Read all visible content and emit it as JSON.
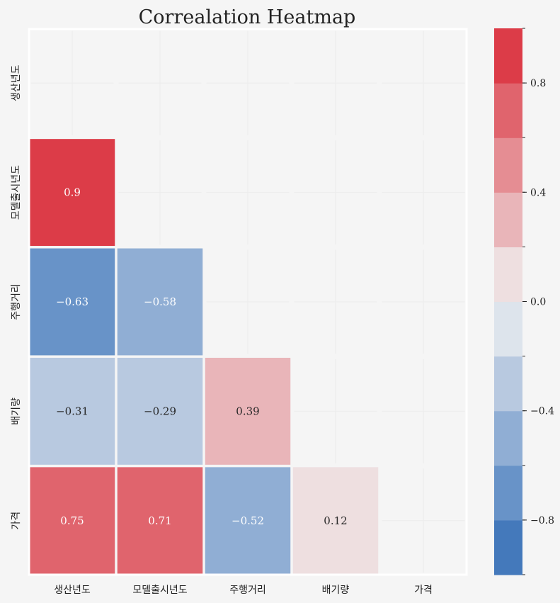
{
  "chart_data": {
    "type": "heatmap",
    "title": "Correalation Heatmap",
    "xlabel": "",
    "ylabel": "",
    "row_labels": [
      "생산년도",
      "모델출시년도",
      "주행거리",
      "배기량",
      "가격"
    ],
    "col_labels": [
      "생산년도",
      "모델출시년도",
      "주행거리",
      "배기량",
      "가격"
    ],
    "mask": "upper-triangle-including-diagonal",
    "values": [
      [
        null,
        null,
        null,
        null,
        null
      ],
      [
        0.9,
        null,
        null,
        null,
        null
      ],
      [
        -0.63,
        -0.58,
        null,
        null,
        null
      ],
      [
        -0.31,
        -0.29,
        0.39,
        null,
        null
      ],
      [
        0.75,
        0.71,
        -0.52,
        0.12,
        null
      ]
    ],
    "cell_labels": [
      [
        null,
        null,
        null,
        null,
        null
      ],
      [
        "0.9",
        null,
        null,
        null,
        null
      ],
      [
        "−0.63",
        "−0.58",
        null,
        null,
        null
      ],
      [
        "−0.31",
        "−0.29",
        "0.39",
        null,
        null
      ],
      [
        "0.75",
        "0.71",
        "−0.52",
        "0.12",
        null
      ]
    ],
    "colorbar": {
      "range": [
        -1,
        1
      ],
      "bins": 10,
      "ticks": [
        0.8,
        0.4,
        0.0,
        -0.4,
        -0.8
      ],
      "tick_labels": [
        "0.8",
        "0.4",
        "0.0",
        "−0.4",
        "−0.8"
      ],
      "colors_low_to_high": [
        "#4479bb",
        "#6893c8",
        "#90aed4",
        "#b8c9e0",
        "#dde4ec",
        "#eedfe0",
        "#e9b5b9",
        "#e58d93",
        "#e0646d",
        "#dc3c48"
      ]
    },
    "mask_color": "#f5f5f5",
    "light_text_color": "#ffffff",
    "dark_text_color": "#262626"
  }
}
